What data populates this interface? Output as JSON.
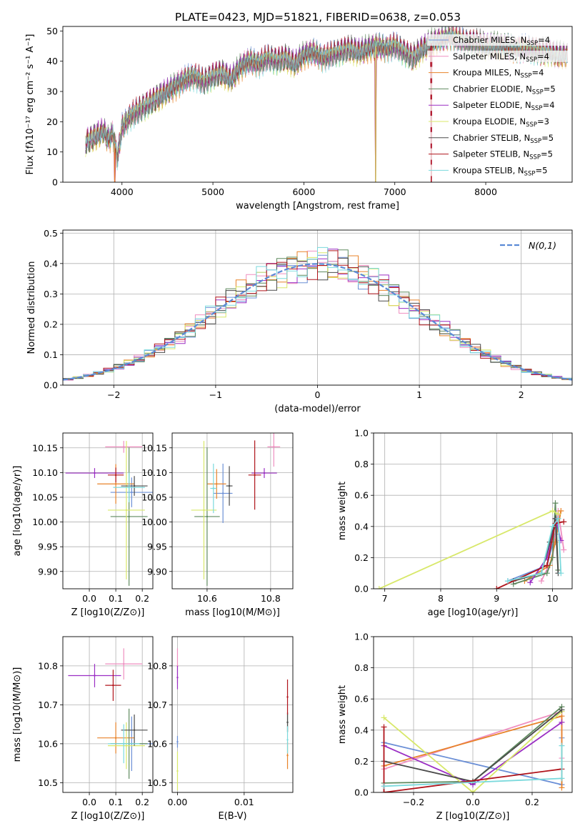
{
  "figure_title": "PLATE=0423, MJD=51821, FIBERID=0638, z=0.053",
  "colors": {
    "Chabrier MILES": "#6b8fd6",
    "Salpeter MILES": "#ef8fc0",
    "Kroupa MILES": "#e8832a",
    "Chabrier ELODIE": "#5f8a5f",
    "Salpeter ELODIE": "#9b2fc4",
    "Kroupa ELODIE": "#d8e86a",
    "Chabrier STELIB": "#4a4a4a",
    "Salpeter STELIB": "#b0141b",
    "Kroupa STELIB": "#7ad9dc"
  },
  "chart_data": [
    {
      "id": "spectrum",
      "type": "line",
      "title": "PLATE=0423, MJD=51821, FIBERID=0638, z=0.053",
      "xlabel": "wavelength [Angstrom, rest frame]",
      "ylabel": "Flux [fλ10⁻¹⁷ erg cm⁻² s⁻¹ A⁻¹]",
      "xlim": [
        3350,
        8950
      ],
      "ylim": [
        0,
        51.5
      ],
      "xticks": [
        4000,
        5000,
        6000,
        7000,
        8000
      ],
      "yticks": [
        0,
        10,
        20,
        30,
        40,
        50
      ],
      "grid": false,
      "legend_position": "right",
      "x": [
        3600,
        3700,
        3800,
        3850,
        3900,
        3950,
        4000,
        4100,
        4200,
        4300,
        4400,
        4500,
        4600,
        4700,
        4800,
        4900,
        5000,
        5100,
        5200,
        5300,
        5400,
        5500,
        5600,
        5700,
        5800,
        5900,
        6000,
        6100,
        6200,
        6300,
        6400,
        6500,
        6600,
        6700,
        6800,
        6900,
        7000,
        7100,
        7200,
        7300,
        7400,
        7500,
        7600,
        7700,
        7800,
        7900,
        8000,
        8100,
        8200,
        8300,
        8400,
        8500,
        8600,
        8700,
        8800,
        8900
      ],
      "y": [
        13,
        15,
        17,
        14,
        16,
        8,
        18,
        22,
        24,
        26,
        28,
        30,
        32,
        34,
        35,
        33,
        35,
        36,
        34,
        38,
        40,
        39,
        41,
        40,
        41,
        39,
        42,
        43,
        41,
        42,
        43,
        44,
        43,
        44,
        45,
        44,
        45,
        43,
        41,
        44,
        46,
        47,
        48,
        47,
        46,
        46,
        45,
        45,
        45,
        44,
        44,
        44,
        43,
        43,
        42,
        42
      ],
      "dips": [
        [
          3920,
          0
        ],
        [
          6790,
          0
        ],
        [
          7400,
          0
        ]
      ],
      "series": [
        {
          "name": "Chabrier MILES, N_SSP=4",
          "name_main": "Chabrier MILES, N",
          "name_sub": "SSP",
          "name_tail": "=4"
        },
        {
          "name": "Salpeter MILES, N_SSP=4",
          "name_main": "Salpeter MILES, N",
          "name_sub": "SSP",
          "name_tail": "=4"
        },
        {
          "name": "Kroupa MILES, N_SSP=4",
          "name_main": "Kroupa MILES, N",
          "name_sub": "SSP",
          "name_tail": "=4"
        },
        {
          "name": "Chabrier ELODIE, N_SSP=5",
          "name_main": "Chabrier ELODIE, N",
          "name_sub": "SSP",
          "name_tail": "=5"
        },
        {
          "name": "Salpeter ELODIE, N_SSP=4",
          "name_main": "Salpeter ELODIE, N",
          "name_sub": "SSP",
          "name_tail": "=4"
        },
        {
          "name": "Kroupa ELODIE, N_SSP=3",
          "name_main": "Kroupa ELODIE, N",
          "name_sub": "SSP",
          "name_tail": "=3"
        },
        {
          "name": "Chabrier STELIB, N_SSP=5",
          "name_main": "Chabrier STELIB, N",
          "name_sub": "SSP",
          "name_tail": "=5"
        },
        {
          "name": "Salpeter STELIB, N_SSP=5",
          "name_main": "Salpeter STELIB, N",
          "name_sub": "SSP",
          "name_tail": "=5"
        },
        {
          "name": "Kroupa STELIB, N_SSP=5",
          "name_main": "Kroupa STELIB, N",
          "name_sub": "SSP",
          "name_tail": "=5"
        }
      ]
    },
    {
      "id": "residuals",
      "type": "line",
      "xlabel": "(data-model)/error",
      "ylabel": "Normed distribution",
      "xlim": [
        -2.5,
        2.5
      ],
      "ylim": [
        0,
        0.51
      ],
      "xticks": [
        -2,
        -1,
        0,
        1,
        2
      ],
      "yticks": [
        0.0,
        0.1,
        0.2,
        0.3,
        0.4,
        0.5
      ],
      "grid": true,
      "legend": "N(0,1)",
      "legend_position": "upper right",
      "bin_width": 0.1
    },
    {
      "id": "age-vs-Z",
      "type": "scatter",
      "xlabel": "Z [log10(Z/Z⊙)]",
      "ylabel": "age [log10(age/yr)]",
      "xlim": [
        -0.1,
        0.24
      ],
      "ylim": [
        9.865,
        10.18
      ],
      "xticks": [
        0.0,
        0.1,
        0.2
      ],
      "yticks": [
        9.9,
        9.95,
        10.0,
        10.05,
        10.1,
        10.15
      ],
      "grid": true,
      "points": [
        {
          "x": 0.16,
          "y": 10.06,
          "xerr": 0.08,
          "yerr": 0.03
        },
        {
          "x": 0.13,
          "y": 10.152,
          "xerr": 0.07,
          "yerr": 0.012
        },
        {
          "x": 0.1,
          "y": 10.077,
          "xerr": 0.07,
          "yerr": 0.04
        },
        {
          "x": 0.15,
          "y": 10.011,
          "xerr": 0.07,
          "yerr": 0.14
        },
        {
          "x": 0.02,
          "y": 10.099,
          "xerr": 0.11,
          "yerr": 0.01
        },
        {
          "x": 0.14,
          "y": 10.024,
          "xerr": 0.07,
          "yerr": 0.14
        },
        {
          "x": 0.17,
          "y": 10.073,
          "xerr": 0.05,
          "yerr": 0.02
        },
        {
          "x": 0.1,
          "y": 10.095,
          "xerr": 0.03,
          "yerr": 0.015
        },
        {
          "x": 0.15,
          "y": 10.07,
          "xerr": 0.06,
          "yerr": 0.03
        }
      ]
    },
    {
      "id": "age-vs-mass",
      "type": "scatter",
      "xlabel": "mass [log10(M/M⊙)]",
      "ylabel": "",
      "xlim": [
        10.49,
        10.87
      ],
      "ylim": [
        9.865,
        10.18
      ],
      "xticks": [
        10.6,
        10.8
      ],
      "yticks": [
        9.9,
        9.95,
        10.0,
        10.05,
        10.1,
        10.15
      ],
      "grid": true,
      "points": [
        {
          "x": 10.65,
          "y": 10.058,
          "xerr": 0.03,
          "yerr": 0.06
        },
        {
          "x": 10.81,
          "y": 10.152,
          "xerr": 0.02,
          "yerr": 0.04
        },
        {
          "x": 10.63,
          "y": 10.077,
          "xerr": 0.03,
          "yerr": 0.03
        },
        {
          "x": 10.6,
          "y": 10.011,
          "xerr": 0.04,
          "yerr": 0.14
        },
        {
          "x": 10.78,
          "y": 10.099,
          "xerr": 0.04,
          "yerr": 0.01
        },
        {
          "x": 10.59,
          "y": 10.024,
          "xerr": 0.04,
          "yerr": 0.14
        },
        {
          "x": 10.67,
          "y": 10.073,
          "xerr": 0.01,
          "yerr": 0.04
        },
        {
          "x": 10.75,
          "y": 10.095,
          "xerr": 0.02,
          "yerr": 0.07
        },
        {
          "x": 10.62,
          "y": 10.068,
          "xerr": 0.01,
          "yerr": 0.05
        }
      ]
    },
    {
      "id": "mass-weight-vs-age",
      "type": "line",
      "xlabel": "age  [log10(age/yr)]",
      "ylabel": "mass weight",
      "xlim": [
        6.8,
        10.35
      ],
      "ylim": [
        0.0,
        1.0
      ],
      "xticks": [
        7,
        8,
        9,
        10
      ],
      "yticks": [
        0.0,
        0.2,
        0.4,
        0.6,
        0.8,
        1.0
      ],
      "grid": true,
      "series": [
        {
          "x": [
            9.2,
            9.9,
            10.05,
            10.1
          ],
          "y": [
            0.05,
            0.15,
            0.35,
            0.45
          ]
        },
        {
          "x": [
            9.8,
            10.0,
            10.1,
            10.2
          ],
          "y": [
            0.05,
            0.2,
            0.5,
            0.25
          ]
        },
        {
          "x": [
            9.5,
            9.95,
            10.05,
            10.15
          ],
          "y": [
            0.05,
            0.15,
            0.3,
            0.5
          ]
        },
        {
          "x": [
            9.3,
            9.9,
            10.0,
            10.05,
            10.1
          ],
          "y": [
            0.03,
            0.1,
            0.2,
            0.55,
            0.12
          ]
        },
        {
          "x": [
            9.6,
            9.9,
            10.05,
            10.15
          ],
          "y": [
            0.04,
            0.2,
            0.45,
            0.31
          ]
        },
        {
          "x": [
            6.9,
            10.0,
            10.1
          ],
          "y": [
            0.0,
            0.5,
            0.48
          ]
        },
        {
          "x": [
            9.3,
            9.8,
            9.95,
            10.05,
            10.1
          ],
          "y": [
            0.05,
            0.1,
            0.3,
            0.45,
            0.1
          ]
        },
        {
          "x": [
            9.0,
            9.9,
            10.05,
            10.2
          ],
          "y": [
            0.0,
            0.15,
            0.42,
            0.43
          ]
        },
        {
          "x": [
            9.2,
            9.8,
            10.0,
            10.1,
            10.15
          ],
          "y": [
            0.05,
            0.1,
            0.4,
            0.45,
            0.1
          ]
        }
      ]
    },
    {
      "id": "mass-vs-Z",
      "type": "scatter",
      "xlabel": "Z [log10(Z/Z⊙)]",
      "ylabel": "mass [log10(M/M⊙)]",
      "xlim": [
        -0.1,
        0.24
      ],
      "ylim": [
        10.475,
        10.875
      ],
      "xticks": [
        0.0,
        0.1,
        0.2
      ],
      "yticks": [
        10.5,
        10.6,
        10.7,
        10.8
      ],
      "grid": true,
      "points": [
        {
          "x": 0.16,
          "y": 10.6,
          "xerr": 0.08,
          "yerr": 0.07
        },
        {
          "x": 0.13,
          "y": 10.805,
          "xerr": 0.07,
          "yerr": 0.04
        },
        {
          "x": 0.1,
          "y": 10.615,
          "xerr": 0.07,
          "yerr": 0.04
        },
        {
          "x": 0.15,
          "y": 10.6,
          "xerr": 0.07,
          "yerr": 0.09
        },
        {
          "x": 0.02,
          "y": 10.775,
          "xerr": 0.1,
          "yerr": 0.03
        },
        {
          "x": 0.14,
          "y": 10.595,
          "xerr": 0.07,
          "yerr": 0.06
        },
        {
          "x": 0.17,
          "y": 10.635,
          "xerr": 0.05,
          "yerr": 0.04
        },
        {
          "x": 0.09,
          "y": 10.75,
          "xerr": 0.03,
          "yerr": 0.04
        },
        {
          "x": 0.13,
          "y": 10.6,
          "xerr": 0.06,
          "yerr": 0.05
        }
      ]
    },
    {
      "id": "mass-vs-EBV",
      "type": "scatter",
      "xlabel": "E(B-V)",
      "ylabel": "",
      "xlim": [
        -0.0008,
        0.0173
      ],
      "ylim": [
        10.475,
        10.875
      ],
      "xticks": [
        0.0,
        0.01
      ],
      "yticks": [
        10.5,
        10.6,
        10.7,
        10.8
      ],
      "grid": true,
      "points": [
        {
          "x": 0.0,
          "y": 10.605,
          "xerr": 0,
          "yerr": 0.015
        },
        {
          "x": 0.0,
          "y": 10.8,
          "xerr": 0,
          "yerr": 0.045
        },
        {
          "x": 0.0165,
          "y": 10.57,
          "xerr": 0,
          "yerr": 0.035
        },
        {
          "x": 0.0165,
          "y": 10.655,
          "xerr": 0,
          "yerr": 0.025
        },
        {
          "x": 0.0,
          "y": 10.77,
          "xerr": 0,
          "yerr": 0.03
        },
        {
          "x": 0.0,
          "y": 10.53,
          "xerr": 0,
          "yerr": 0.05
        },
        {
          "x": 0.0165,
          "y": 10.655,
          "xerr": 0,
          "yerr": 0.025
        },
        {
          "x": 0.0165,
          "y": 10.72,
          "xerr": 0,
          "yerr": 0.045
        },
        {
          "x": 0.0165,
          "y": 10.61,
          "xerr": 0,
          "yerr": 0.035
        }
      ]
    },
    {
      "id": "mass-weight-vs-Z",
      "type": "line",
      "xlabel": "Z [log10(Z/Z⊙)]",
      "ylabel": "mass weight",
      "xlim": [
        -0.335,
        0.335
      ],
      "ylim": [
        0.0,
        1.0
      ],
      "xticks": [
        -0.2,
        0.0,
        0.2
      ],
      "yticks": [
        0.0,
        0.2,
        0.4,
        0.6,
        0.8,
        1.0
      ],
      "grid": true,
      "series": [
        {
          "x": [
            -0.3,
            0.3,
            0.3
          ],
          "y": [
            0.32,
            0.05,
            0.35
          ]
        },
        {
          "x": [
            -0.3,
            0.3,
            0.3
          ],
          "y": [
            0.15,
            0.52,
            0.22
          ]
        },
        {
          "x": [
            -0.3,
            0.3,
            0.3
          ],
          "y": [
            0.17,
            0.49,
            0.03
          ]
        },
        {
          "x": [
            -0.3,
            0.0,
            0.3
          ],
          "y": [
            0.06,
            0.07,
            0.55
          ]
        },
        {
          "x": [
            -0.3,
            0.0,
            0.3
          ],
          "y": [
            0.3,
            0.05,
            0.45
          ]
        },
        {
          "x": [
            -0.3,
            0.0,
            0.3
          ],
          "y": [
            0.48,
            0.0,
            0.52
          ]
        },
        {
          "x": [
            -0.3,
            0.0,
            0.3
          ],
          "y": [
            0.2,
            0.07,
            0.53
          ]
        },
        {
          "x": [
            -0.3,
            -0.3,
            0.3
          ],
          "y": [
            0.42,
            0.0,
            0.15
          ]
        },
        {
          "x": [
            -0.3,
            0.3,
            0.3
          ],
          "y": [
            0.04,
            0.09,
            0.3
          ]
        }
      ]
    }
  ]
}
